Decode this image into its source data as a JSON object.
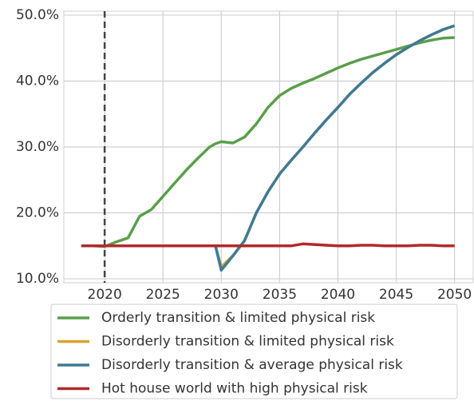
{
  "chart_data": {
    "type": "line",
    "x": [
      2018,
      2019,
      2020,
      2021,
      2022,
      2023,
      2024,
      2025,
      2026,
      2027,
      2028,
      2029,
      2029.5,
      2030,
      2031,
      2032,
      2033,
      2034,
      2035,
      2036,
      2037,
      2038,
      2039,
      2040,
      2041,
      2042,
      2043,
      2044,
      2045,
      2046,
      2047,
      2048,
      2049,
      2050
    ],
    "series": [
      {
        "name": "Orderly transition & limited physical risk",
        "color": "#5a9e4b",
        "values": [
          15,
          15,
          14.9,
          15.6,
          16.2,
          19.5,
          20.5,
          22.5,
          24.5,
          26.5,
          28.3,
          30,
          30.5,
          30.8,
          30.6,
          31.5,
          33.5,
          36,
          37.8,
          38.9,
          39.7,
          40.4,
          41.2,
          42,
          42.7,
          43.3,
          43.8,
          44.3,
          44.8,
          45.3,
          45.8,
          46.2,
          46.5,
          46.6
        ]
      },
      {
        "name": "Disorderly transition & limited physical risk",
        "color": "#d9a330",
        "values": [
          15,
          15,
          15,
          15,
          15,
          15,
          15,
          15,
          15,
          15,
          15,
          15,
          15,
          11.8,
          13.5,
          15.8,
          20,
          23.2,
          25.9,
          28,
          30,
          32.1,
          34.1,
          36,
          38,
          39.7,
          41.3,
          42.7,
          44,
          45.1,
          46.1,
          47,
          47.8,
          48.4
        ]
      },
      {
        "name": "Disorderly transition & average physical risk",
        "color": "#3f7a96",
        "values": [
          15,
          15,
          15,
          15,
          15,
          15,
          15,
          15,
          15,
          15,
          15,
          15,
          15,
          11.3,
          13.5,
          15.8,
          20,
          23.2,
          25.9,
          28,
          30,
          32.1,
          34.1,
          36,
          38,
          39.7,
          41.3,
          42.7,
          44,
          45.1,
          46.1,
          47,
          47.8,
          48.4
        ]
      },
      {
        "name": "Hot house world with high physical risk",
        "color": "#b22a2a",
        "values": [
          15,
          15,
          15,
          15,
          15,
          15,
          15,
          15,
          15,
          15,
          15,
          15,
          15,
          15,
          15,
          15,
          15,
          15,
          15,
          15,
          15.3,
          15.2,
          15.1,
          15,
          15,
          15.1,
          15.1,
          15,
          15,
          15,
          15.1,
          15.1,
          15,
          15
        ]
      }
    ],
    "xlim": [
      2016.5,
      2051.6
    ],
    "ylim": [
      9.4,
      50.6
    ],
    "xticks": [
      2020,
      2025,
      2030,
      2035,
      2040,
      2045,
      2050
    ],
    "yticks": [
      {
        "value": 10,
        "label": "10.0%"
      },
      {
        "value": 20,
        "label": "20.0%"
      },
      {
        "value": 30,
        "label": "30.0%"
      },
      {
        "value": 40,
        "label": "40.0%"
      },
      {
        "value": 50,
        "label": "50.0%"
      }
    ],
    "vline": 2020,
    "grid": true,
    "legend": "bottom"
  }
}
